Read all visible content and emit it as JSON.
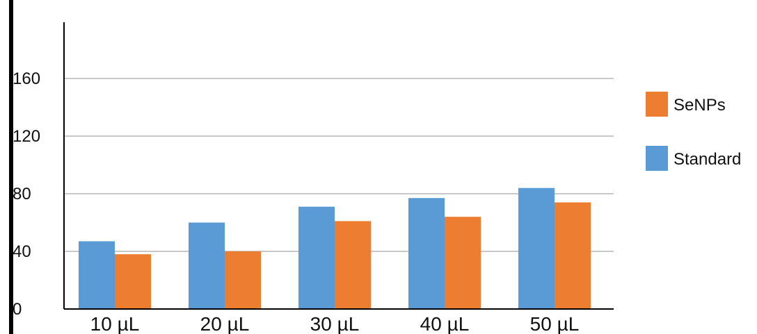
{
  "chart_data": {
    "type": "bar",
    "title": "",
    "xlabel": "",
    "ylabel": "",
    "categories": [
      "10 µL",
      "20 µL",
      "30 µL",
      "40 µL",
      "50 µL"
    ],
    "series": [
      {
        "name": "Standard",
        "color": "#5b9bd5",
        "values": [
          47,
          60,
          71,
          77,
          84
        ]
      },
      {
        "name": "SeNPs",
        "color": "#ed7d31",
        "values": [
          38,
          40,
          61,
          64,
          74
        ]
      }
    ],
    "ylim": [
      0,
      200
    ],
    "yticks": [
      0,
      40,
      80,
      120,
      160
    ],
    "grid": true,
    "legend": {
      "position": "right",
      "order": [
        "SeNPs",
        "Standard"
      ]
    }
  }
}
